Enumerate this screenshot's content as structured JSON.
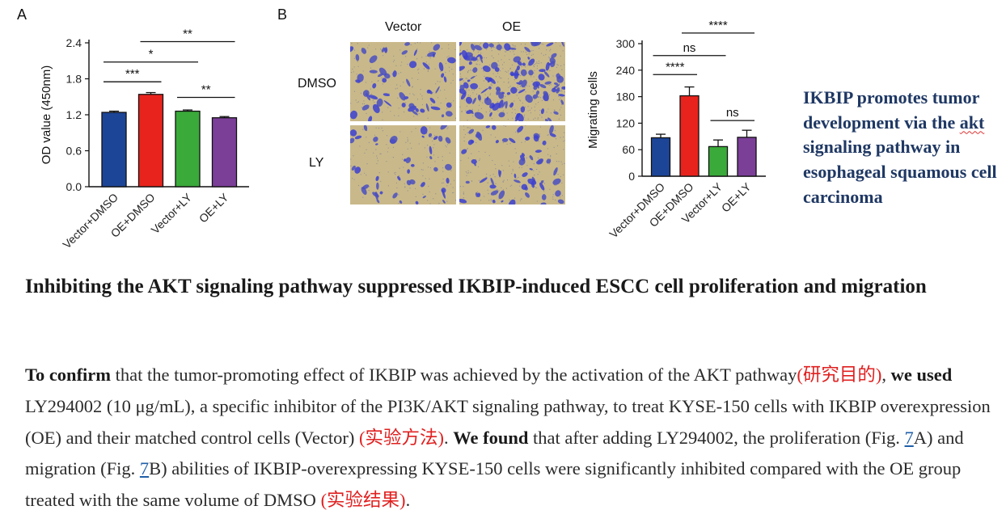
{
  "panel_a": {
    "letter": "A"
  },
  "panel_b": {
    "letter": "B",
    "columns": [
      "Vector",
      "OE"
    ],
    "rows": [
      "DMSO",
      "LY"
    ]
  },
  "chart_data": [
    {
      "type": "bar",
      "ylabel": "OD value (450nm)",
      "categories": [
        "Vector+DMSO",
        "OE+DMSO",
        "Vector+LY",
        "OE+LY"
      ],
      "values": [
        1.24,
        1.54,
        1.26,
        1.15
      ],
      "errors": [
        0.02,
        0.03,
        0.02,
        0.02
      ],
      "colors": [
        "#1d4597",
        "#e8231d",
        "#3aaa3a",
        "#7b3f98"
      ],
      "yticks": [
        "0.0",
        "0.6",
        "1.2",
        "1.8",
        "2.4"
      ],
      "ylim": [
        0,
        2.4
      ],
      "significance": [
        {
          "from": 0,
          "to": 1,
          "label": "***",
          "level": 1.75
        },
        {
          "from": 0,
          "to": 2,
          "label": "*",
          "level": 2.08
        },
        {
          "from": 1,
          "to": 3,
          "label": "**",
          "level": 2.42
        },
        {
          "from": 2,
          "to": 3,
          "label": "**",
          "level": 1.49
        }
      ]
    },
    {
      "type": "bar",
      "ylabel": "Migrating cells",
      "categories": [
        "Vector+DMSO",
        "OE+DMSO",
        "Vector+LY",
        "OE+LY"
      ],
      "values": [
        87,
        182,
        67,
        88
      ],
      "errors": [
        8,
        20,
        15,
        16
      ],
      "colors": [
        "#1d4597",
        "#e8231d",
        "#3aaa3a",
        "#7b3f98"
      ],
      "yticks": [
        "0",
        "60",
        "120",
        "180",
        "240",
        "300"
      ],
      "ylim": [
        0,
        300
      ],
      "significance": [
        {
          "from": 0,
          "to": 1,
          "label": "****",
          "level": 230
        },
        {
          "from": 0,
          "to": 2,
          "label": "ns",
          "level": 273
        },
        {
          "from": 1,
          "to": 3,
          "label": "****",
          "level": 324
        },
        {
          "from": 2,
          "to": 3,
          "label": "ns",
          "level": 126
        }
      ]
    }
  ],
  "summary": {
    "part1": "IKBIP promotes tumor development via the ",
    "akt": "akt",
    "part2": " signaling pathway in esophageal squamous cell carcinoma"
  },
  "heading": "Inhibiting the AKT signaling pathway suppressed IKBIP-induced ESCC cell proliferation and migration",
  "paragraph": {
    "s1_bold": "To confirm",
    "s1": " that the tumor-promoting effect of IKBIP was achieved by the activation of the AKT pathway",
    "s1_tag": "(研究目的)",
    "s1_end": ", ",
    "s2_bold": "we used",
    "s2": " LY294002 (10 μg/mL), a specific inhibitor of the PI3K/AKT signaling pathway, to treat KYSE-150 cells with IKBIP overexpression (OE) and their matched control cells (Vector) ",
    "s2_tag": "(实验方法)",
    "s2_end": ". ",
    "s3_bold": "We found",
    "s3a": " that after adding LY294002, the proliferation (Fig. ",
    "ref1": "7",
    "s3b": "A) and migration (Fig. ",
    "ref2": "7",
    "s3c": "B) abilities of IKBIP-overexpressing KYSE-150 cells were significantly inhibited compared with the OE group treated with the same volume of DMSO ",
    "s3_tag": "(实验结果)",
    "s3_end": "."
  }
}
